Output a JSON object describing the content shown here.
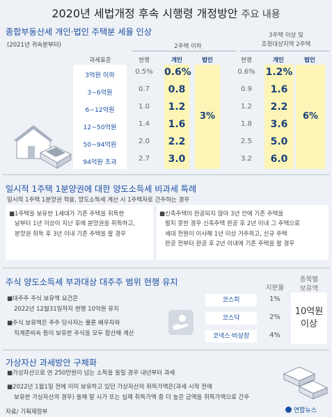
{
  "title": {
    "main": "2020년 세법개정 후속 시행령 개정방안",
    "sub": "주요 내용"
  },
  "s1": {
    "heading": "종합부동산세 개인·법인 주택분 세율 인상",
    "note": "(2021년 귀속분부터)",
    "group1": "2주택 이하",
    "group2_line1": "3주택 이상 및",
    "group2_line2": "조정대상지역 2주택",
    "headers": {
      "base": "과세표준",
      "cur": "현행",
      "ind": "개인",
      "corp": "법인"
    },
    "rows": [
      {
        "base": "3억원 이하",
        "c1": "0.5%",
        "i1": "0.6%",
        "c2": "0.6%",
        "i2": "1.2%"
      },
      {
        "base": "3~6억원",
        "c1": "0.7",
        "i1": "0.8",
        "c2": "0.9",
        "i2": "1.6"
      },
      {
        "base": "6~12억원",
        "c1": "1.0",
        "i1": "1.2",
        "c2": "1.2",
        "i2": "2.2"
      },
      {
        "base": "12~50억원",
        "c1": "1.4",
        "i1": "1.6",
        "c2": "1.8",
        "i2": "3.6"
      },
      {
        "base": "50~94억원",
        "c1": "2.0",
        "i1": "2.2",
        "c2": "2.5",
        "i2": "5.0"
      },
      {
        "base": "94억원 초과",
        "c1": "2.7",
        "i1": "3.0",
        "c2": "3.2",
        "i2": "6.0"
      }
    ],
    "corp1": "3%",
    "corp2": "6%"
  },
  "s2": {
    "heading": "일시적 1주택 1분양권에 대한 양도소득세 비과세 특례",
    "intro": "일시적 1주택 1분양권 적용, 양도소득세 계산 시 1주택자로 간주하는 경우",
    "left": [
      "■1주택을 보유한 1세대가 기존 주택을 취득한",
      "날부터 1년 이상이 지난 후에 분양권을 취득하고,",
      "분양권 취득 후 3년 이내 기존 주택을 팔 경우"
    ],
    "right": [
      "■신축주택이 완공되지 않아 3년 안에 기존 주택을",
      "팔지 못한 경우 신축주택 완공 후 2년 이내 그 주택으로",
      "세대 전원이 이사해 1년 이상 거주하고, 신규 주택",
      "완공 전부터 완공 후 2년 이내에 기존 주택을 팔 경우"
    ]
  },
  "s3": {
    "heading": "주식 양도소득세 부과대상 대주주 범위 현행 유지",
    "bullet1": [
      "■대주주 주식 보유액 요건은",
      "2022년 12월31일까지 현행 10억원 유지"
    ],
    "bullet2": [
      "■주식 보유액은 주주 당사자는 물론 배우자와",
      "직계존비속 등이 보유한 주식을 모두 합산해 계산"
    ],
    "hdr_share": "지분율",
    "hdr_hold_1": "종목별",
    "hdr_hold_2": "보유액",
    "markets": [
      {
        "name": "코스피",
        "share": "1%"
      },
      {
        "name": "코스닥",
        "share": "2%"
      },
      {
        "name": "코넥스·비상장",
        "share": "4%"
      }
    ],
    "hold_1": "10억원",
    "hold_2": "이상"
  },
  "s4": {
    "heading": "가상자산 과세방안 구체화",
    "bullet1": "■가상자산으로 연 250만원이 넘는 소득을 올릴 경우 내년부터 과세",
    "bullet2": [
      "■2022년 1월1일 전에 이미 보유하고 있던 가상자산의 취득가액은(과세 시작 전에",
      "보유한 가상자산의 경우) 올해 말 시가 또는 실제 취득가액 중 더 높은 금액을 취득가액으로 간주"
    ]
  },
  "source": "자료/ 기획재정부",
  "logo": "연합뉴스",
  "colors": {
    "accent": "#1a4fa3",
    "highlight": "#fcf5b6",
    "background": "#eef1f5"
  }
}
